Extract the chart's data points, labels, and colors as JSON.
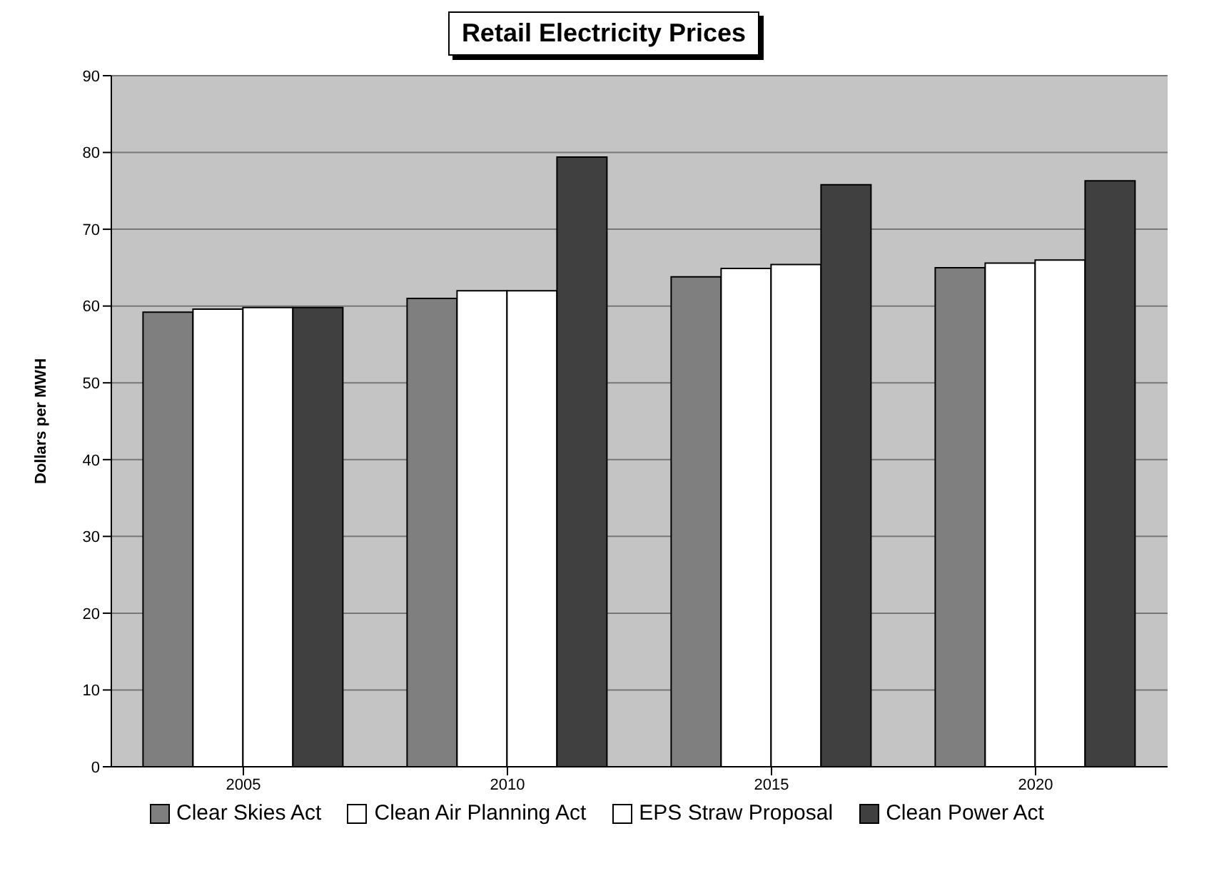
{
  "chart_data": {
    "type": "bar",
    "title": "Retail Electricity Prices",
    "ylabel": "Dollars per MWH",
    "categories": [
      "2005",
      "2010",
      "2015",
      "2020"
    ],
    "series": [
      {
        "name": "Clear Skies Act",
        "color": "#7f7f7f",
        "values": [
          59.2,
          61,
          63.8,
          65
        ]
      },
      {
        "name": "Clean Air Planning Act",
        "color": "#ffffff",
        "values": [
          59.6,
          62,
          64.9,
          65.6
        ]
      },
      {
        "name": "EPS Straw Proposal",
        "color": "#ffffff",
        "values": [
          59.8,
          62,
          65.4,
          66
        ]
      },
      {
        "name": "Clean Power Act",
        "color": "#404040",
        "values": [
          59.8,
          79.4,
          75.8,
          76.3
        ]
      }
    ],
    "ylim": [
      0,
      90
    ],
    "yticks": [
      0,
      10,
      20,
      30,
      40,
      50,
      60,
      70,
      80,
      90
    ],
    "grid": "y",
    "legend": "bottom"
  }
}
